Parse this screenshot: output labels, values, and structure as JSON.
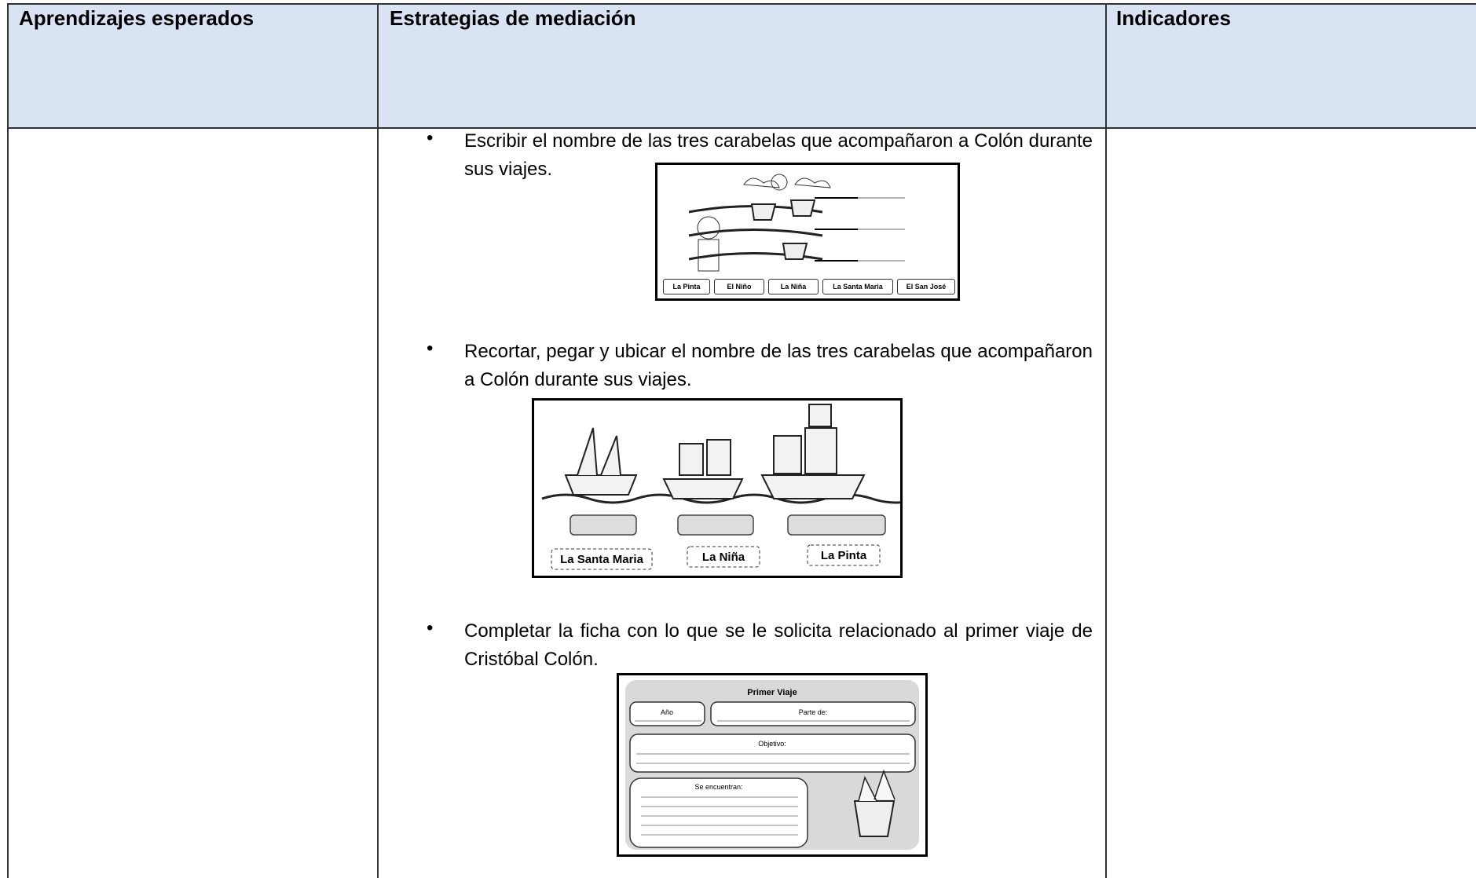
{
  "table": {
    "headers": [
      "Aprendizajes esperados",
      "Estrategias de mediación",
      "Indicadores"
    ],
    "strategies": [
      {
        "text": "Escribir el nombre de las tres carabelas que acompañaron a Colón durante sus viajes.",
        "figure": {
          "labels": [
            "La Pinta",
            "El Niño",
            "La Niña",
            "La Santa Maria",
            "El San José"
          ]
        }
      },
      {
        "text": "Recortar, pegar y ubicar el nombre de las tres carabelas que acompañaron a Colón durante sus viajes.",
        "figure": {
          "labels": [
            "La Santa Maria",
            "La Niña",
            "La Pinta"
          ]
        }
      },
      {
        "text": "Completar la ficha con lo que se le solicita relacionado al primer viaje de Cristóbal Colón.",
        "figure": {
          "title": "Primer Viaje",
          "fields": [
            "Año",
            "Parte de:",
            "Objetivo:",
            "Se encuentran:"
          ]
        }
      }
    ]
  }
}
